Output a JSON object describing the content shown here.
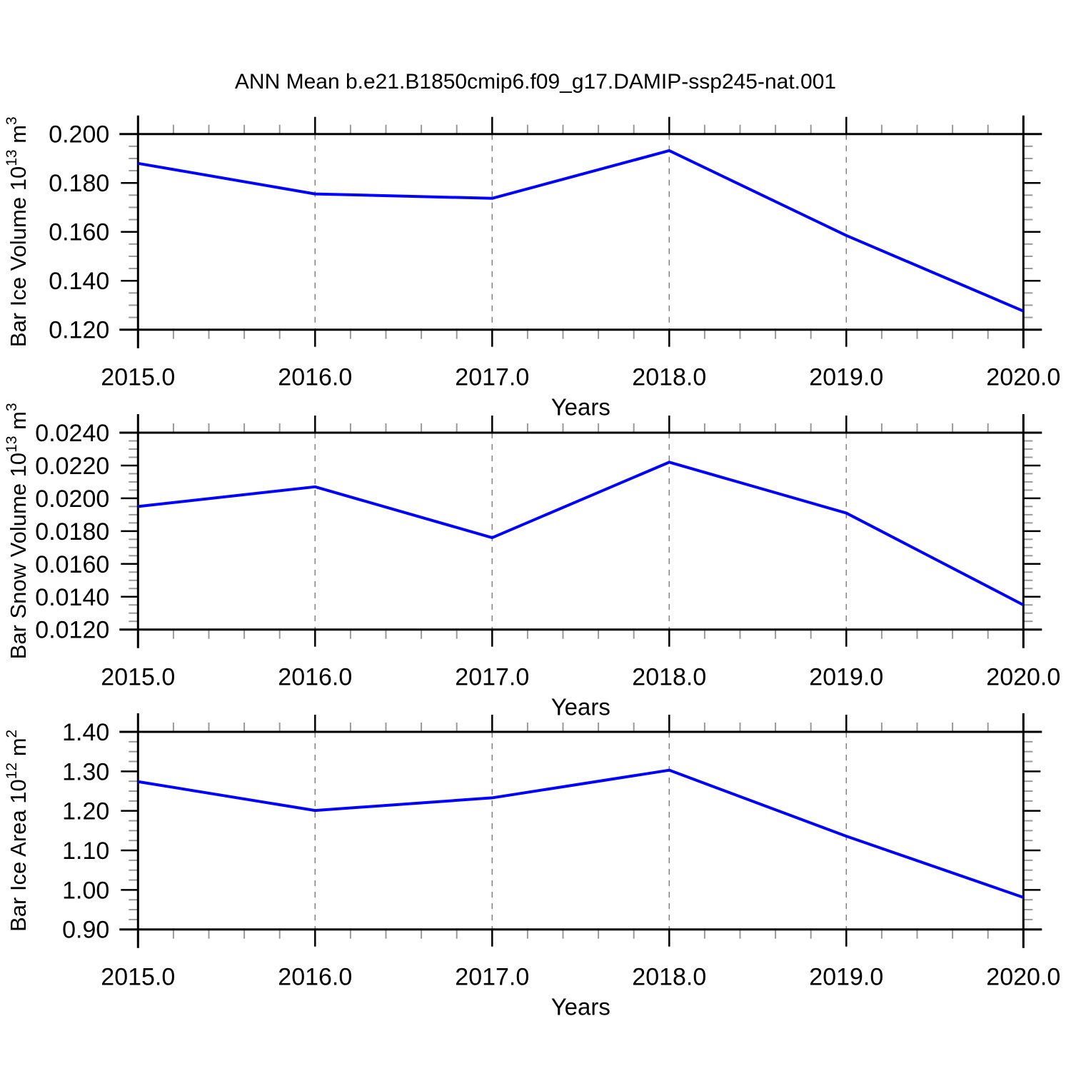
{
  "title": "ANN Mean b.e21.B1850cmip6.f09_g17.DAMIP-ssp245-nat.001",
  "colors": {
    "line": "#0000ff",
    "axis": "#000000",
    "major_tick": "#000000",
    "minor_tick": "#999999",
    "grid": "#808080",
    "text": "#000000",
    "background": "#ffffff"
  },
  "x_axis": {
    "label": "Years",
    "min": 2015,
    "max": 2020,
    "major_ticks": [
      2015,
      2016,
      2017,
      2018,
      2019,
      2020
    ],
    "tick_labels": [
      "2015.0",
      "2016.0",
      "2017.0",
      "2018.0",
      "2019.0",
      "2020.0"
    ],
    "minor_step": 0.2,
    "gridlines_at": [
      2016,
      2017,
      2018,
      2019
    ]
  },
  "chart_data": [
    {
      "type": "line",
      "name": "ice-volume",
      "ylabel": "Bar Ice Volume 10^13 m^3",
      "ylabel_parts": [
        {
          "text": "Bar Ice Volume 10"
        },
        {
          "sup": "13"
        },
        {
          "text": " m"
        },
        {
          "sup": "3"
        }
      ],
      "xlabel": "Years",
      "x": [
        2015,
        2016,
        2017,
        2018,
        2019,
        2020
      ],
      "values": [
        0.188,
        0.1755,
        0.1737,
        0.1932,
        0.1585,
        0.1276
      ],
      "ylim": [
        0.12,
        0.2
      ],
      "ytick_step": 0.02,
      "yminor_step": 0.005,
      "ytick_decimals": 3,
      "ytick_labels": [
        "0.120",
        "0.140",
        "0.160",
        "0.180",
        "0.200"
      ],
      "grid": "x-dashed",
      "legend": "none"
    },
    {
      "type": "line",
      "name": "snow-volume",
      "ylabel": "Bar Snow Volume 10^13 m^3",
      "ylabel_parts": [
        {
          "text": "Bar Snow Volume 10"
        },
        {
          "sup": "13"
        },
        {
          "text": " m"
        },
        {
          "sup": "3"
        }
      ],
      "xlabel": "Years",
      "x": [
        2015,
        2016,
        2017,
        2018,
        2019,
        2020
      ],
      "values": [
        0.0195,
        0.0207,
        0.0176,
        0.0222,
        0.0191,
        0.0135
      ],
      "ylim": [
        0.012,
        0.024
      ],
      "ytick_step": 0.002,
      "yminor_step": 0.0005,
      "ytick_decimals": 4,
      "ytick_labels": [
        "0.0120",
        "0.0140",
        "0.0160",
        "0.0180",
        "0.0200",
        "0.0220",
        "0.0240"
      ],
      "grid": "x-dashed",
      "legend": "none"
    },
    {
      "type": "line",
      "name": "ice-area",
      "ylabel": "Bar Ice Area 10^12 m^2",
      "ylabel_parts": [
        {
          "text": "Bar Ice Area 10"
        },
        {
          "sup": "12"
        },
        {
          "text": " m"
        },
        {
          "sup": "2"
        }
      ],
      "xlabel": "Years",
      "x": [
        2015,
        2016,
        2017,
        2018,
        2019,
        2020
      ],
      "values": [
        1.274,
        1.201,
        1.233,
        1.303,
        1.136,
        0.981
      ],
      "ylim": [
        0.9,
        1.4
      ],
      "ytick_step": 0.1,
      "yminor_step": 0.025,
      "ytick_decimals": 2,
      "ytick_labels": [
        "0.90",
        "1.00",
        "1.10",
        "1.20",
        "1.30",
        "1.40"
      ],
      "grid": "x-dashed",
      "legend": "none"
    }
  ]
}
